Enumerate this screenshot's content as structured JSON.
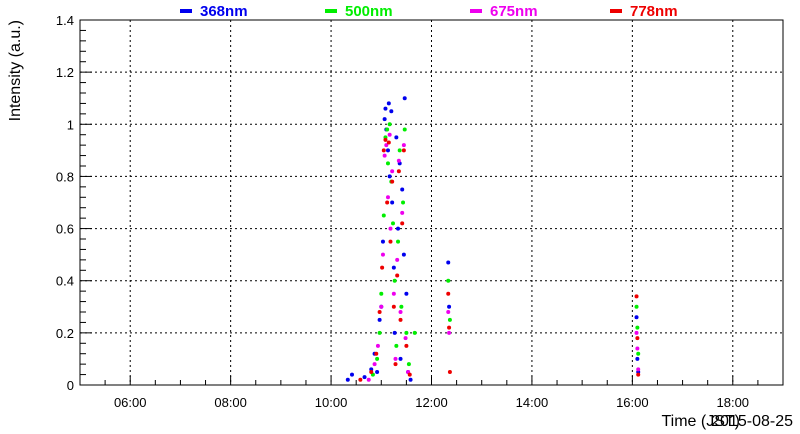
{
  "chart_data": {
    "type": "scatter",
    "xlabel": "Time (JST)",
    "ylabel": "Intensity (a.u.)",
    "date_label": "2015-08-25",
    "xlim": [
      "05:00",
      "19:00"
    ],
    "ylim": [
      0,
      1.4
    ],
    "x_ticks": [
      "06:00",
      "08:00",
      "10:00",
      "12:00",
      "14:00",
      "16:00",
      "18:00"
    ],
    "y_ticks": [
      "0",
      "0.2",
      "0.4",
      "0.6",
      "0.8",
      "1",
      "1.2",
      "1.4"
    ],
    "grid": true,
    "legend_position": "top",
    "series": [
      {
        "name": "368nm",
        "color": "#0000ee",
        "points": [
          [
            "10:20",
            0.02
          ],
          [
            "10:25",
            0.04
          ],
          [
            "10:40",
            0.03
          ],
          [
            "10:48",
            0.06
          ],
          [
            "10:52",
            0.12
          ],
          [
            "10:55",
            0.05
          ],
          [
            "10:58",
            0.25
          ],
          [
            "11:00",
            0.3
          ],
          [
            "11:02",
            0.55
          ],
          [
            "11:04",
            1.02
          ],
          [
            "11:05",
            1.06
          ],
          [
            "11:06",
            0.98
          ],
          [
            "11:08",
            0.9
          ],
          [
            "11:09",
            1.08
          ],
          [
            "11:10",
            0.8
          ],
          [
            "11:12",
            1.05
          ],
          [
            "11:13",
            0.7
          ],
          [
            "11:15",
            0.45
          ],
          [
            "11:16",
            0.2
          ],
          [
            "11:18",
            0.95
          ],
          [
            "11:20",
            0.6
          ],
          [
            "11:22",
            0.85
          ],
          [
            "11:23",
            0.1
          ],
          [
            "11:25",
            0.75
          ],
          [
            "11:27",
            0.5
          ],
          [
            "11:28",
            1.1
          ],
          [
            "11:30",
            0.35
          ],
          [
            "11:32",
            0.05
          ],
          [
            "11:35",
            0.02
          ],
          [
            "12:20",
            0.47
          ],
          [
            "12:21",
            0.3
          ],
          [
            "16:05",
            0.26
          ],
          [
            "16:06",
            0.1
          ],
          [
            "16:07",
            0.05
          ]
        ]
      },
      {
        "name": "500nm",
        "color": "#00ee00",
        "points": [
          [
            "10:50",
            0.04
          ],
          [
            "10:55",
            0.1
          ],
          [
            "10:58",
            0.2
          ],
          [
            "11:00",
            0.35
          ],
          [
            "11:03",
            0.65
          ],
          [
            "11:05",
            0.95
          ],
          [
            "11:07",
            0.98
          ],
          [
            "11:08",
            0.85
          ],
          [
            "11:10",
            1.0
          ],
          [
            "11:12",
            0.78
          ],
          [
            "11:14",
            0.62
          ],
          [
            "11:16",
            0.4
          ],
          [
            "11:18",
            0.15
          ],
          [
            "11:20",
            0.55
          ],
          [
            "11:22",
            0.9
          ],
          [
            "11:24",
            0.3
          ],
          [
            "11:26",
            0.7
          ],
          [
            "11:28",
            0.98
          ],
          [
            "11:30",
            0.2
          ],
          [
            "11:33",
            0.08
          ],
          [
            "11:40",
            0.2
          ],
          [
            "12:20",
            0.4
          ],
          [
            "12:22",
            0.25
          ],
          [
            "16:05",
            0.3
          ],
          [
            "16:06",
            0.22
          ],
          [
            "16:07",
            0.12
          ]
        ]
      },
      {
        "name": "675nm",
        "color": "#ee00ee",
        "points": [
          [
            "10:45",
            0.02
          ],
          [
            "10:52",
            0.08
          ],
          [
            "10:56",
            0.15
          ],
          [
            "11:00",
            0.3
          ],
          [
            "11:02",
            0.5
          ],
          [
            "11:04",
            0.88
          ],
          [
            "11:06",
            0.92
          ],
          [
            "11:08",
            0.72
          ],
          [
            "11:10",
            0.96
          ],
          [
            "11:11",
            0.6
          ],
          [
            "11:13",
            0.82
          ],
          [
            "11:15",
            0.35
          ],
          [
            "11:17",
            0.1
          ],
          [
            "11:19",
            0.48
          ],
          [
            "11:21",
            0.86
          ],
          [
            "11:23",
            0.28
          ],
          [
            "11:25",
            0.66
          ],
          [
            "11:27",
            0.92
          ],
          [
            "11:29",
            0.18
          ],
          [
            "11:32",
            0.05
          ],
          [
            "12:20",
            0.28
          ],
          [
            "12:21",
            0.2
          ],
          [
            "16:05",
            0.2
          ],
          [
            "16:06",
            0.14
          ],
          [
            "16:07",
            0.06
          ]
        ]
      },
      {
        "name": "778nm",
        "color": "#ee0000",
        "points": [
          [
            "10:35",
            0.02
          ],
          [
            "10:48",
            0.05
          ],
          [
            "10:54",
            0.12
          ],
          [
            "10:58",
            0.28
          ],
          [
            "11:01",
            0.45
          ],
          [
            "11:03",
            0.9
          ],
          [
            "11:05",
            0.94
          ],
          [
            "11:07",
            0.7
          ],
          [
            "11:09",
            0.93
          ],
          [
            "11:11",
            0.55
          ],
          [
            "11:13",
            0.78
          ],
          [
            "11:15",
            0.3
          ],
          [
            "11:17",
            0.08
          ],
          [
            "11:19",
            0.42
          ],
          [
            "11:21",
            0.82
          ],
          [
            "11:23",
            0.25
          ],
          [
            "11:25",
            0.62
          ],
          [
            "11:27",
            0.9
          ],
          [
            "11:30",
            0.15
          ],
          [
            "11:34",
            0.04
          ],
          [
            "12:20",
            0.35
          ],
          [
            "12:21",
            0.22
          ],
          [
            "12:22",
            0.05
          ],
          [
            "16:05",
            0.34
          ],
          [
            "16:06",
            0.18
          ],
          [
            "16:07",
            0.04
          ]
        ]
      }
    ]
  }
}
